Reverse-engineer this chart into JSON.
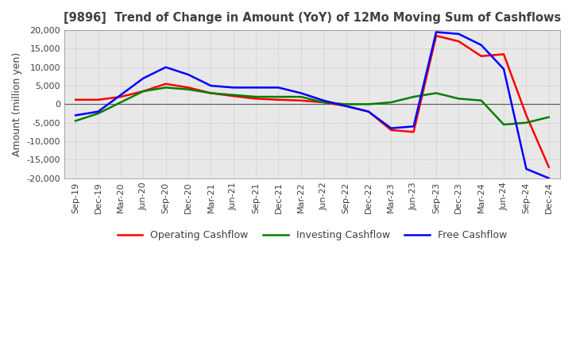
{
  "title": "[9896]  Trend of Change in Amount (YoY) of 12Mo Moving Sum of Cashflows",
  "ylabel": "Amount (million yen)",
  "ylim": [
    -20000,
    20000
  ],
  "yticks": [
    -20000,
    -15000,
    -10000,
    -5000,
    0,
    5000,
    10000,
    15000,
    20000
  ],
  "x_labels": [
    "Sep-19",
    "Dec-19",
    "Mar-20",
    "Jun-20",
    "Sep-20",
    "Dec-20",
    "Mar-21",
    "Jun-21",
    "Sep-21",
    "Dec-21",
    "Mar-22",
    "Jun-22",
    "Sep-22",
    "Dec-22",
    "Mar-23",
    "Jun-23",
    "Sep-23",
    "Dec-23",
    "Mar-24",
    "Jun-24",
    "Sep-24",
    "Dec-24"
  ],
  "operating_cashflow": [
    1200,
    1200,
    2000,
    3500,
    5500,
    4500,
    3000,
    2200,
    1500,
    1200,
    1000,
    500,
    -500,
    -2000,
    -7000,
    -7500,
    18500,
    17000,
    13000,
    13500,
    -3000,
    -17000
  ],
  "investing_cashflow": [
    -4500,
    -2500,
    500,
    3500,
    4500,
    4000,
    3000,
    2500,
    2000,
    2000,
    2000,
    500,
    0,
    0,
    500,
    2000,
    3000,
    1500,
    1000,
    -5500,
    -5000,
    -3500
  ],
  "free_cashflow": [
    -3000,
    -2000,
    2500,
    7000,
    10000,
    8000,
    5000,
    4500,
    4500,
    4500,
    3000,
    1000,
    -500,
    -2000,
    -6500,
    -6000,
    19500,
    19000,
    16000,
    9500,
    -17500,
    -20000
  ],
  "operating_color": "#FF0000",
  "investing_color": "#008000",
  "free_color": "#0000FF",
  "background_color": "#FFFFFF",
  "plot_bg_color": "#E8E8E8",
  "grid_color": "#AAAAAA",
  "title_color": "#404040",
  "legend_labels": [
    "Operating Cashflow",
    "Investing Cashflow",
    "Free Cashflow"
  ]
}
